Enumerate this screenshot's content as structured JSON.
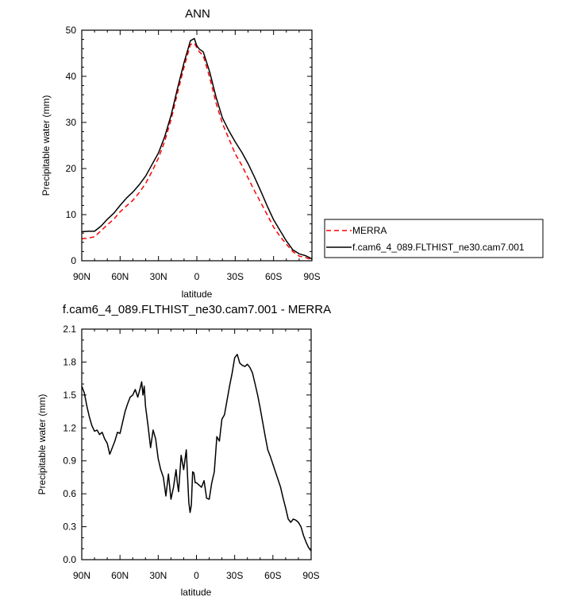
{
  "chart_data": [
    {
      "type": "line",
      "title": "ANN",
      "xlabel": "latitude",
      "ylabel": "Precipitable water (mm)",
      "xlim": [
        90,
        -90
      ],
      "ylim": [
        0,
        50
      ],
      "x_ticks": [
        90,
        60,
        30,
        0,
        -30,
        -60,
        -90
      ],
      "x_tick_labels": [
        "90N",
        "60N",
        "30N",
        "0",
        "30S",
        "60S",
        "90S"
      ],
      "y_ticks": [
        0,
        10,
        20,
        30,
        40,
        50
      ],
      "y_tick_labels": [
        "0",
        "10",
        "20",
        "30",
        "40",
        "50"
      ],
      "grid": false,
      "legend_position": "right",
      "series": [
        {
          "name": "MERRA",
          "color": "#ff0000",
          "dash": "dashed",
          "x": [
            90,
            85,
            80,
            75,
            70,
            65,
            60,
            55,
            50,
            45,
            40,
            35,
            30,
            25,
            20,
            15,
            10,
            5,
            2,
            0,
            -2,
            -5,
            -10,
            -15,
            -20,
            -25,
            -30,
            -35,
            -40,
            -45,
            -50,
            -55,
            -60,
            -65,
            -70,
            -75,
            -80,
            -85,
            -90
          ],
          "values": [
            4.8,
            4.9,
            5.2,
            6.5,
            7.8,
            9.0,
            10.6,
            11.9,
            13.1,
            14.8,
            16.8,
            19.4,
            22.3,
            26.0,
            30.8,
            36.5,
            42.0,
            46.9,
            47.2,
            46.2,
            45.3,
            44.5,
            39.8,
            34.2,
            29.8,
            26.5,
            23.2,
            20.8,
            18.0,
            15.2,
            12.6,
            10.0,
            7.3,
            5.3,
            3.6,
            2.0,
            1.0,
            0.7,
            0.2
          ]
        },
        {
          "name": "f.cam6_4_089.FLTHIST_ne30.cam7.001",
          "color": "#000000",
          "dash": "solid",
          "x": [
            90,
            85,
            80,
            75,
            70,
            65,
            60,
            55,
            50,
            45,
            40,
            35,
            30,
            25,
            20,
            15,
            10,
            5,
            2,
            0,
            -2,
            -5,
            -10,
            -15,
            -20,
            -25,
            -30,
            -35,
            -40,
            -45,
            -50,
            -55,
            -60,
            -65,
            -70,
            -75,
            -80,
            -85,
            -90
          ],
          "values": [
            6.3,
            6.4,
            6.4,
            7.5,
            9.0,
            10.3,
            12.0,
            13.6,
            14.9,
            16.5,
            18.4,
            20.9,
            23.4,
            27.0,
            31.7,
            37.5,
            43.0,
            47.7,
            48.2,
            46.6,
            45.9,
            45.3,
            41.0,
            35.5,
            31.0,
            28.2,
            25.8,
            23.6,
            21.1,
            18.2,
            15.1,
            11.9,
            8.9,
            6.6,
            4.3,
            2.4,
            1.5,
            1.1,
            0.4
          ]
        }
      ]
    },
    {
      "type": "line",
      "title": "f.cam6_4_089.FLTHIST_ne30.cam7.001 - MERRA",
      "xlabel": "latitude",
      "ylabel": "Precipitable water (mm)",
      "xlim": [
        90,
        -90
      ],
      "ylim": [
        0,
        2.1
      ],
      "x_ticks": [
        90,
        60,
        30,
        0,
        -30,
        -60,
        -90
      ],
      "x_tick_labels": [
        "90N",
        "60N",
        "30N",
        "0",
        "30S",
        "60S",
        "90S"
      ],
      "y_ticks": [
        0,
        0.3,
        0.6,
        0.9,
        1.2,
        1.5,
        1.8,
        2.1
      ],
      "y_tick_labels": [
        "0.0",
        "0.3",
        "0.6",
        "0.9",
        "1.2",
        "1.5",
        "1.8",
        "2.1"
      ],
      "grid": false,
      "series": [
        {
          "color": "#000000",
          "dash": "solid",
          "x": [
            90,
            88,
            86,
            84,
            82,
            80,
            78,
            76,
            74,
            72,
            70,
            68,
            66,
            64,
            62,
            60,
            58,
            56,
            54,
            52,
            50,
            48,
            46,
            44,
            43,
            42,
            41,
            40,
            38,
            36,
            34,
            32,
            30,
            28,
            26,
            24,
            22,
            20,
            18,
            16,
            15,
            14,
            12,
            10,
            8,
            6,
            5,
            4,
            3,
            2,
            1,
            0,
            -2,
            -4,
            -6,
            -8,
            -10,
            -12,
            -14,
            -16,
            -18,
            -20,
            -22,
            -24,
            -26,
            -28,
            -30,
            -32,
            -34,
            -36,
            -38,
            -40,
            -42,
            -44,
            -46,
            -48,
            -50,
            -52,
            -54,
            -56,
            -58,
            -60,
            -62,
            -64,
            -66,
            -68,
            -70,
            -72,
            -74,
            -76,
            -78,
            -80,
            -82,
            -84,
            -86,
            -88,
            -90
          ],
          "values": [
            1.58,
            1.52,
            1.4,
            1.3,
            1.22,
            1.17,
            1.18,
            1.14,
            1.16,
            1.1,
            1.06,
            0.96,
            1.02,
            1.08,
            1.16,
            1.15,
            1.25,
            1.35,
            1.42,
            1.48,
            1.5,
            1.55,
            1.48,
            1.57,
            1.62,
            1.5,
            1.58,
            1.4,
            1.22,
            1.02,
            1.18,
            1.1,
            0.92,
            0.82,
            0.75,
            0.58,
            0.78,
            0.55,
            0.66,
            0.82,
            0.7,
            0.62,
            0.95,
            0.82,
            1.0,
            0.52,
            0.43,
            0.5,
            0.8,
            0.79,
            0.7,
            0.7,
            0.68,
            0.66,
            0.72,
            0.56,
            0.55,
            0.7,
            0.8,
            1.12,
            1.08,
            1.28,
            1.32,
            1.45,
            1.58,
            1.7,
            1.84,
            1.87,
            1.79,
            1.77,
            1.76,
            1.78,
            1.75,
            1.7,
            1.6,
            1.5,
            1.38,
            1.25,
            1.12,
            1.0,
            0.94,
            0.87,
            0.8,
            0.73,
            0.66,
            0.56,
            0.47,
            0.37,
            0.34,
            0.37,
            0.36,
            0.34,
            0.3,
            0.22,
            0.16,
            0.11,
            0.08
          ]
        }
      ]
    }
  ]
}
